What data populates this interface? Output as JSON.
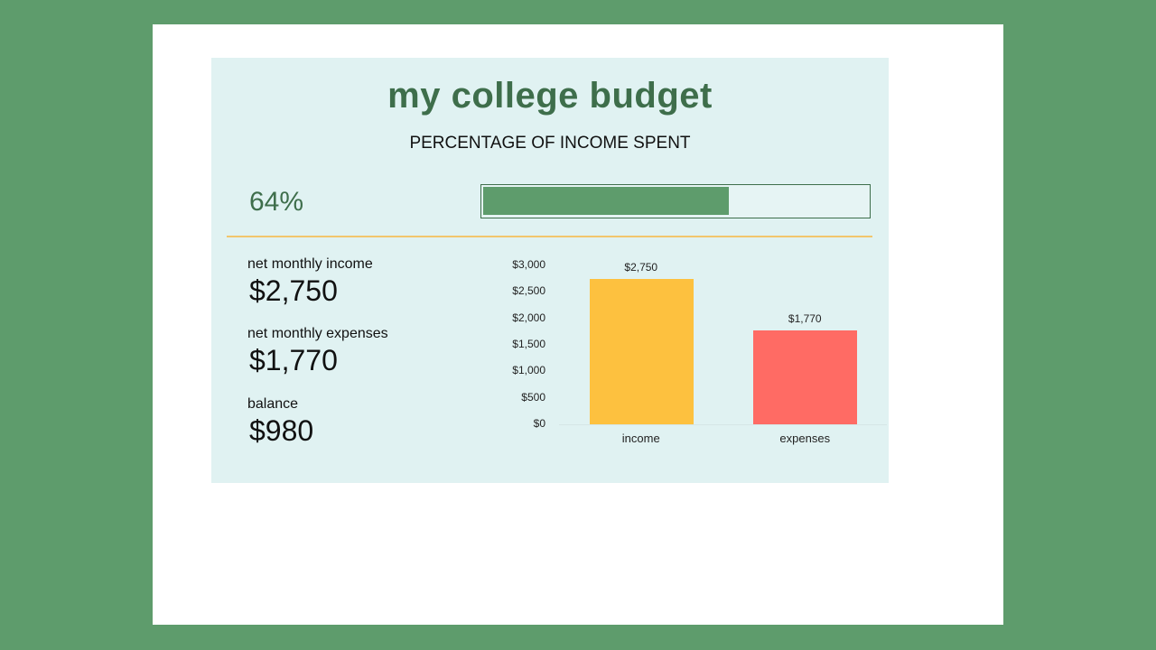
{
  "title": "my college budget",
  "subtitle": "PERCENTAGE OF INCOME SPENT",
  "progress": {
    "percent_label": "64%",
    "percent": 64,
    "fill_color": "#5e9c6c"
  },
  "metrics": [
    {
      "label": "net monthly income",
      "value": "$2,750"
    },
    {
      "label": "net monthly expenses",
      "value": "$1,770"
    },
    {
      "label": "balance",
      "value": "$980"
    }
  ],
  "colors": {
    "background": "#5e9c6c",
    "panel": "#e0f2f2",
    "title": "#3e6e4b",
    "divider": "#f2c66d",
    "income": "#fdc13f",
    "expenses": "#ff6b64"
  },
  "chart_data": {
    "type": "bar",
    "title": "",
    "categories": [
      "income",
      "expenses"
    ],
    "values": [
      2750,
      1770
    ],
    "data_labels": [
      "$2,750",
      "$1,770"
    ],
    "bar_colors": [
      "#fdc13f",
      "#ff6b64"
    ],
    "yticks": [
      "$0",
      "$500",
      "$1,000",
      "$1,500",
      "$2,000",
      "$2,500",
      "$3,000"
    ],
    "ylim": [
      0,
      3000
    ],
    "xlabel": "",
    "ylabel": "",
    "grid": false,
    "legend": "none"
  }
}
